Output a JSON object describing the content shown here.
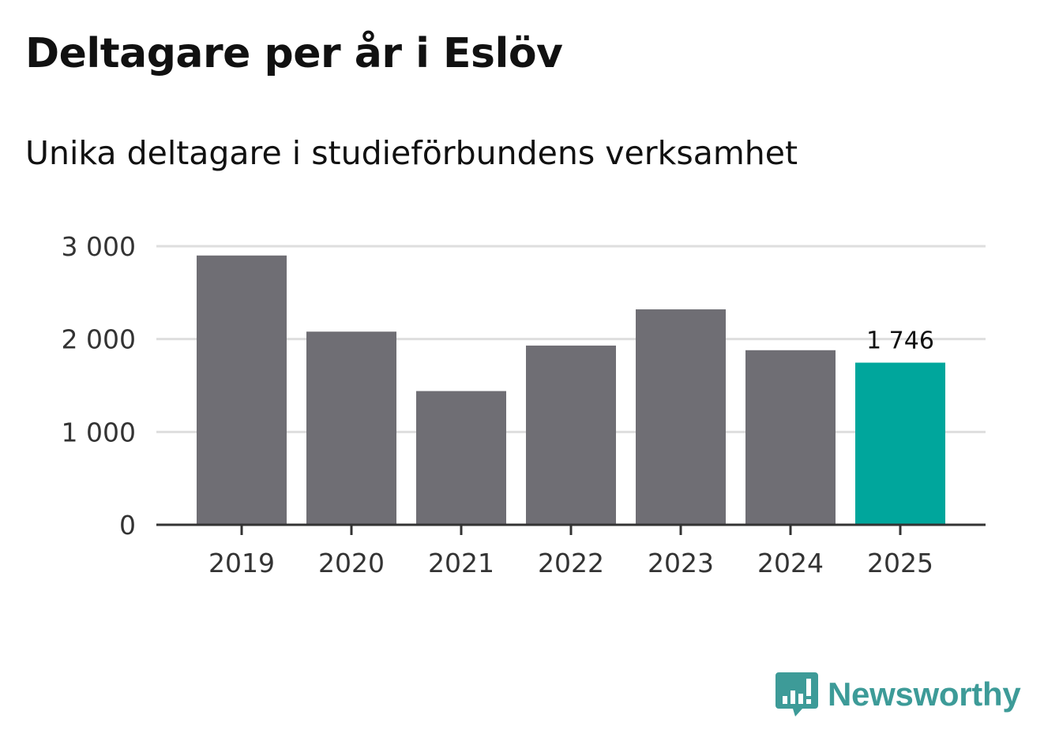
{
  "chart_data": {
    "type": "bar",
    "title": "Deltagare per år i Eslöv",
    "subtitle": "Unika deltagare i studieförbundens verksamhet",
    "categories": [
      "2019",
      "2020",
      "2021",
      "2022",
      "2023",
      "2024",
      "2025"
    ],
    "values": [
      2900,
      2080,
      1440,
      1930,
      2320,
      1880,
      1746
    ],
    "ylim": [
      0,
      3000
    ],
    "yticks": [
      0,
      1000,
      2000,
      3000
    ],
    "ytick_labels": [
      "0",
      "1 000",
      "2 000",
      "3 000"
    ],
    "grid": true,
    "bar_color": "#6f6e74",
    "highlight_color": "#00a69c",
    "highlight_index": 6,
    "data_labels": [
      {
        "index": 6,
        "text": "1 746"
      }
    ]
  },
  "branding": {
    "logo_text": "Newsworthy",
    "logo_color": "#3d9b98",
    "logo_icon": "bar-chart-speech-bubble-icon"
  }
}
